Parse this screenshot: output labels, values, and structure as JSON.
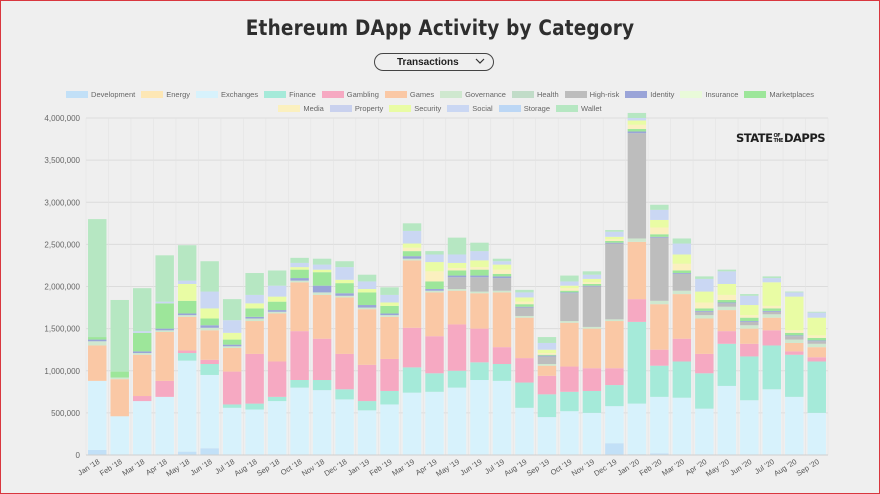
{
  "title": "Ethereum DApp Activity by Category",
  "dropdown": {
    "selected": "Transactions"
  },
  "logo": {
    "part1": "STATE",
    "small1": "OF",
    "small2": "THE",
    "part2": "DAPPS"
  },
  "chart_data": {
    "type": "bar",
    "stacked": true,
    "title": "Ethereum DApp Activity by Category",
    "xlabel": "",
    "ylabel": "",
    "ylim": [
      0,
      4000000
    ],
    "yticks": [
      "0",
      "500,000",
      "1,000,000",
      "1,500,000",
      "2,000,000",
      "2,500,000",
      "3,000,000",
      "3,500,000",
      "4,000,000"
    ],
    "grid": true,
    "legend_position": "top",
    "categories": [
      "Jan '18",
      "Feb '18",
      "Mar '18",
      "Apr '18",
      "May '18",
      "Jun '18",
      "Jul '18",
      "Aug '18",
      "Sep '18",
      "Oct '18",
      "Nov '18",
      "Dec '18",
      "Jan '19",
      "Feb '19",
      "Mar '19",
      "Apr '19",
      "May '19",
      "Jun '19",
      "Jul '19",
      "Aug '19",
      "Sep '19",
      "Oct '19",
      "Nov '19",
      "Dec '19",
      "Jan '20",
      "Feb '20",
      "Mar '20",
      "Apr '20",
      "May '20",
      "Jun '20",
      "Jul '20",
      "Aug '20",
      "Sep '20"
    ],
    "series": [
      {
        "name": "Development",
        "color": "#c2e0f7",
        "values": [
          60000,
          0,
          0,
          0,
          40000,
          80000,
          0,
          0,
          0,
          0,
          0,
          0,
          0,
          0,
          0,
          0,
          0,
          0,
          0,
          0,
          0,
          0,
          0,
          140000,
          10000,
          20000,
          0,
          0,
          0,
          0,
          0,
          0,
          0
        ]
      },
      {
        "name": "Exchanges",
        "color": "#d7f2fc",
        "values": [
          820000,
          460000,
          640000,
          690000,
          1080000,
          870000,
          560000,
          540000,
          640000,
          800000,
          770000,
          660000,
          530000,
          600000,
          740000,
          750000,
          800000,
          890000,
          880000,
          560000,
          450000,
          520000,
          500000,
          440000,
          600000,
          670000,
          680000,
          550000,
          820000,
          650000,
          780000,
          690000,
          500000
        ]
      },
      {
        "name": "Finance",
        "color": "#a5ead9",
        "values": [
          0,
          0,
          0,
          0,
          90000,
          130000,
          40000,
          70000,
          50000,
          90000,
          120000,
          120000,
          110000,
          160000,
          300000,
          220000,
          200000,
          210000,
          200000,
          300000,
          270000,
          230000,
          260000,
          250000,
          970000,
          370000,
          430000,
          420000,
          500000,
          520000,
          520000,
          500000,
          610000
        ]
      },
      {
        "name": "Gambling",
        "color": "#f6a9c2",
        "values": [
          0,
          0,
          60000,
          190000,
          30000,
          50000,
          390000,
          590000,
          420000,
          580000,
          490000,
          420000,
          430000,
          380000,
          470000,
          440000,
          550000,
          400000,
          200000,
          290000,
          220000,
          300000,
          270000,
          200000,
          270000,
          190000,
          270000,
          230000,
          150000,
          150000,
          180000,
          40000,
          50000
        ]
      },
      {
        "name": "Games",
        "color": "#fac8a5",
        "values": [
          420000,
          440000,
          490000,
          580000,
          400000,
          350000,
          280000,
          390000,
          570000,
          580000,
          520000,
          670000,
          660000,
          500000,
          800000,
          520000,
          400000,
          420000,
          650000,
          480000,
          120000,
          520000,
          470000,
          560000,
          680000,
          540000,
          530000,
          420000,
          250000,
          180000,
          150000,
          100000,
          120000
        ]
      },
      {
        "name": "Governance",
        "color": "#cfe8cf",
        "values": [
          50000,
          20000,
          20000,
          20000,
          20000,
          30000,
          20000,
          30000,
          20000,
          20000,
          30000,
          20000,
          20000,
          20000,
          20000,
          20000,
          20000,
          20000,
          20000,
          20000,
          20000,
          20000,
          20000,
          20000,
          40000,
          40000,
          40000,
          40000,
          40000,
          40000,
          40000,
          40000,
          40000
        ]
      },
      {
        "name": "High-risk",
        "color": "#bdbdbd",
        "values": [
          0,
          0,
          0,
          0,
          0,
          0,
          0,
          0,
          0,
          0,
          0,
          0,
          0,
          0,
          0,
          0,
          140000,
          170000,
          150000,
          100000,
          90000,
          330000,
          480000,
          900000,
          1250000,
          750000,
          200000,
          40000,
          40000,
          40000,
          30000,
          40000,
          30000
        ]
      },
      {
        "name": "Identity",
        "color": "#9aa4d8",
        "values": [
          20000,
          0,
          20000,
          20000,
          20000,
          30000,
          20000,
          20000,
          20000,
          30000,
          80000,
          30000,
          30000,
          20000,
          30000,
          20000,
          20000,
          20000,
          20000,
          10000,
          10000,
          10000,
          10000,
          10000,
          20000,
          10000,
          10000,
          10000,
          10000,
          10000,
          10000,
          10000,
          10000
        ]
      },
      {
        "name": "Insurance",
        "color": "#e9fad9",
        "values": [
          0,
          0,
          0,
          0,
          0,
          0,
          0,
          0,
          0,
          0,
          0,
          0,
          0,
          0,
          0,
          0,
          0,
          0,
          0,
          0,
          0,
          0,
          0,
          0,
          0,
          0,
          0,
          0,
          0,
          0,
          0,
          0,
          0
        ]
      },
      {
        "name": "Marketplaces",
        "color": "#9de69a",
        "values": [
          30000,
          70000,
          220000,
          300000,
          150000,
          80000,
          60000,
          100000,
          100000,
          100000,
          160000,
          120000,
          150000,
          90000,
          60000,
          90000,
          60000,
          70000,
          30000,
          30000,
          10000,
          20000,
          20000,
          20000,
          30000,
          30000,
          30000,
          30000,
          30000,
          40000,
          30000,
          30000,
          30000
        ]
      },
      {
        "name": "Media",
        "color": "#fbf0bf",
        "values": [
          0,
          0,
          0,
          0,
          0,
          0,
          0,
          0,
          0,
          0,
          0,
          0,
          0,
          0,
          40000,
          120000,
          30000,
          30000,
          50000,
          30000,
          20000,
          30000,
          20000,
          20000,
          50000,
          80000,
          80000,
          70000,
          60000,
          30000,
          30000,
          30000,
          30000
        ]
      },
      {
        "name": "Property",
        "color": "#c9d1ee",
        "values": [
          0,
          0,
          0,
          0,
          0,
          0,
          0,
          0,
          0,
          0,
          0,
          0,
          0,
          0,
          0,
          0,
          0,
          0,
          0,
          0,
          0,
          0,
          0,
          0,
          0,
          0,
          0,
          0,
          0,
          0,
          0,
          0,
          0
        ]
      },
      {
        "name": "Security",
        "color": "#e9fca4",
        "values": [
          0,
          0,
          0,
          0,
          200000,
          120000,
          80000,
          60000,
          60000,
          30000,
          30000,
          40000,
          40000,
          40000,
          50000,
          110000,
          60000,
          80000,
          60000,
          50000,
          40000,
          30000,
          40000,
          30000,
          50000,
          90000,
          110000,
          130000,
          130000,
          120000,
          280000,
          400000,
          210000
        ]
      },
      {
        "name": "Social",
        "color": "#cad7f3",
        "values": [
          0,
          0,
          20000,
          20000,
          40000,
          200000,
          150000,
          100000,
          130000,
          50000,
          60000,
          150000,
          90000,
          90000,
          150000,
          90000,
          100000,
          110000,
          40000,
          60000,
          80000,
          50000,
          50000,
          60000,
          30000,
          120000,
          130000,
          150000,
          150000,
          110000,
          50000,
          50000,
          60000
        ]
      },
      {
        "name": "Storage",
        "color": "#bcd7f5",
        "values": [
          0,
          0,
          0,
          0,
          0,
          0,
          0,
          0,
          0,
          0,
          0,
          0,
          0,
          0,
          0,
          0,
          0,
          0,
          0,
          0,
          0,
          0,
          0,
          0,
          0,
          0,
          0,
          0,
          0,
          0,
          0,
          0,
          0
        ]
      },
      {
        "name": "Wallet",
        "color": "#b6e7c2",
        "values": [
          1400000,
          850000,
          510000,
          550000,
          420000,
          360000,
          250000,
          260000,
          180000,
          60000,
          70000,
          70000,
          80000,
          90000,
          90000,
          40000,
          200000,
          100000,
          30000,
          30000,
          70000,
          70000,
          40000,
          20000,
          60000,
          60000,
          60000,
          30000,
          20000,
          20000,
          20000,
          10000,
          10000
        ]
      },
      {
        "name": "Energy",
        "color": "#fde7b5",
        "values": [
          0,
          0,
          0,
          0,
          0,
          0,
          0,
          0,
          0,
          0,
          0,
          0,
          0,
          0,
          0,
          0,
          0,
          0,
          0,
          0,
          0,
          0,
          0,
          0,
          0,
          0,
          0,
          0,
          0,
          0,
          0,
          0,
          0
        ]
      },
      {
        "name": "Health",
        "color": "#c1dcc8",
        "values": [
          0,
          0,
          0,
          0,
          0,
          0,
          0,
          0,
          0,
          0,
          0,
          0,
          0,
          0,
          0,
          0,
          0,
          0,
          0,
          0,
          0,
          0,
          0,
          0,
          0,
          0,
          0,
          0,
          0,
          0,
          0,
          0,
          0
        ]
      }
    ],
    "legend": [
      [
        "Development",
        "Energy",
        "Exchanges",
        "Finance",
        "Gambling",
        "Games",
        "Governance",
        "Health",
        "High-risk",
        "Identity",
        "Insurance",
        "Marketplaces"
      ],
      [
        "Media",
        "Property",
        "Security",
        "Social",
        "Storage",
        "Wallet"
      ]
    ]
  }
}
